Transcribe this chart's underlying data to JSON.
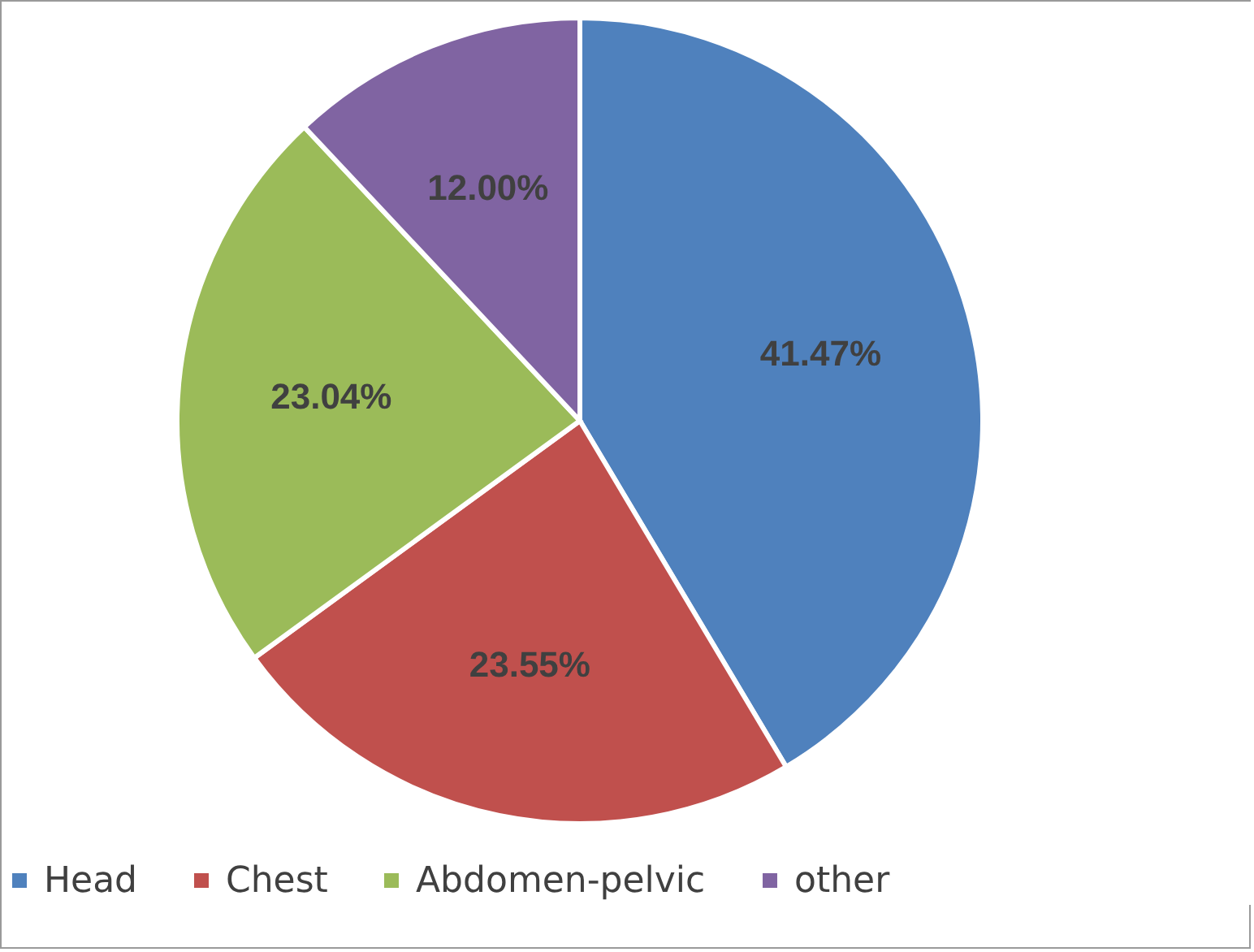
{
  "chart_data": {
    "type": "pie",
    "categories": [
      "Head",
      "Chest",
      "Abdomen-pelvic",
      "other"
    ],
    "values": [
      41.47,
      23.55,
      23.04,
      12.0
    ],
    "colors": [
      "#4f81bd",
      "#c0504d",
      "#9bbb59",
      "#8064a2"
    ],
    "value_labels": [
      "41.47%",
      "23.55%",
      "23.04%",
      "12.00%"
    ],
    "legend": "bottom"
  }
}
